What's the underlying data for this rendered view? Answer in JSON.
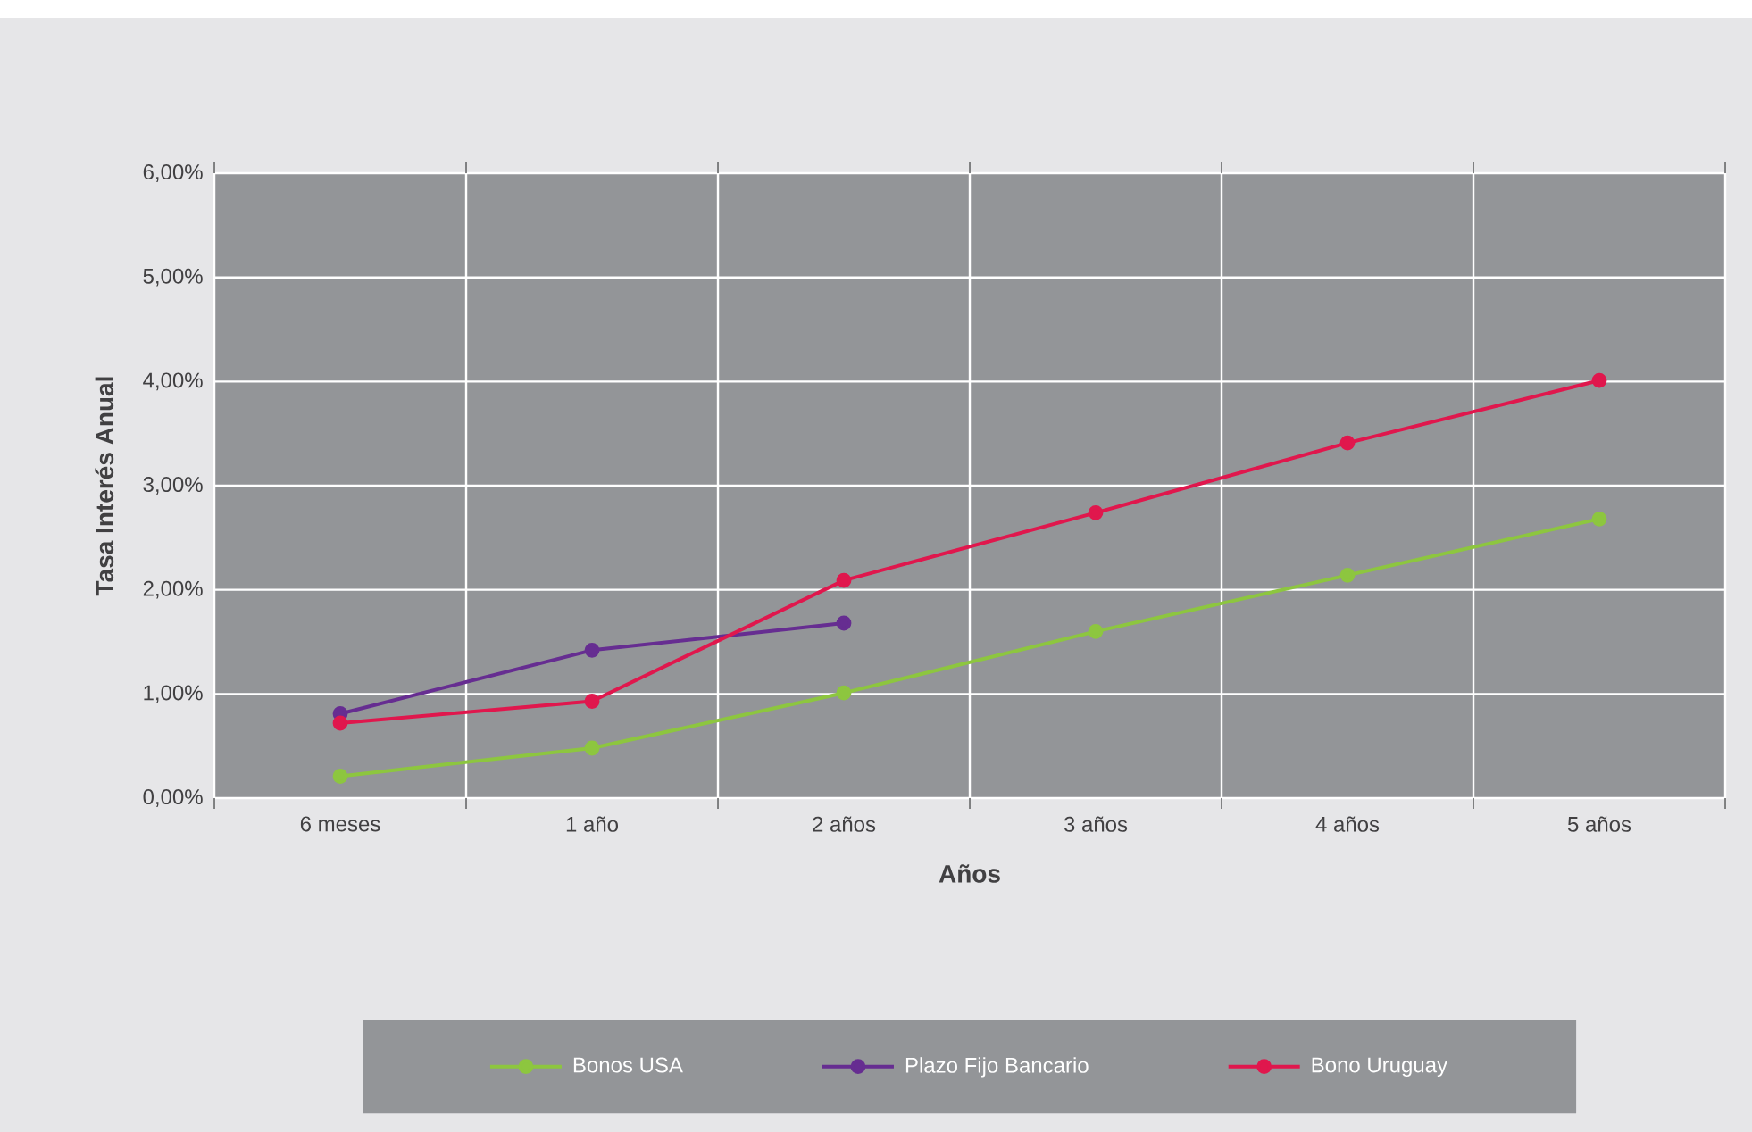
{
  "chart_data": {
    "type": "line",
    "xlabel": "Años",
    "ylabel": "Tasa Interés Anual",
    "categories": [
      "6 meses",
      "1 año",
      "2 años",
      "3 años",
      "4 años",
      "5 años"
    ],
    "series": [
      {
        "name": "Bonos USA",
        "color": "#8dc63f",
        "values": [
          0.21,
          0.48,
          1.01,
          1.6,
          2.14,
          2.68
        ]
      },
      {
        "name": "Plazo Fijo Bancario",
        "color": "#662d91",
        "values": [
          0.81,
          1.42,
          1.68,
          null,
          null,
          null
        ]
      },
      {
        "name": "Bono Uruguay",
        "color": "#e0174d",
        "values": [
          0.72,
          0.93,
          2.09,
          2.74,
          3.41,
          4.01
        ]
      }
    ],
    "ylim": [
      0,
      6
    ],
    "yticks": [
      {
        "value": 0,
        "label": "0,00%"
      },
      {
        "value": 1,
        "label": "1,00%"
      },
      {
        "value": 2,
        "label": "2,00%"
      },
      {
        "value": 3,
        "label": "3,00%"
      },
      {
        "value": 4,
        "label": "4,00%"
      },
      {
        "value": 5,
        "label": "5,00%"
      },
      {
        "value": 6,
        "label": "6,00%"
      }
    ],
    "grid": true,
    "legend": "bottom",
    "marker": "circle",
    "line_style": "solid"
  }
}
